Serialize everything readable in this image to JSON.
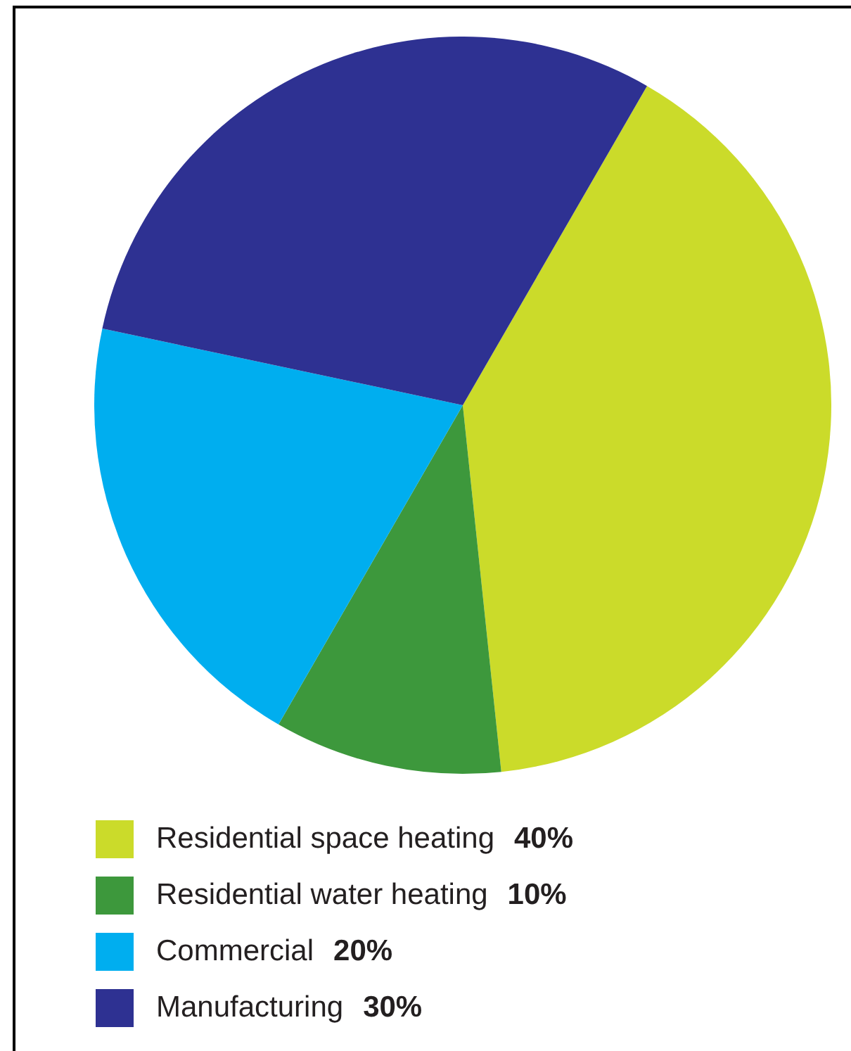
{
  "chart_data": {
    "type": "pie",
    "categories": [
      "Residential space heating",
      "Residential water heating",
      "Commercial",
      "Manufacturing"
    ],
    "values": [
      40,
      10,
      20,
      30
    ],
    "colors": [
      "#cbdb2a",
      "#3d983c",
      "#00aeef",
      "#2e3192"
    ],
    "value_labels": [
      "40%",
      "10%",
      "20%",
      "30%"
    ],
    "legend": "bottom left"
  }
}
